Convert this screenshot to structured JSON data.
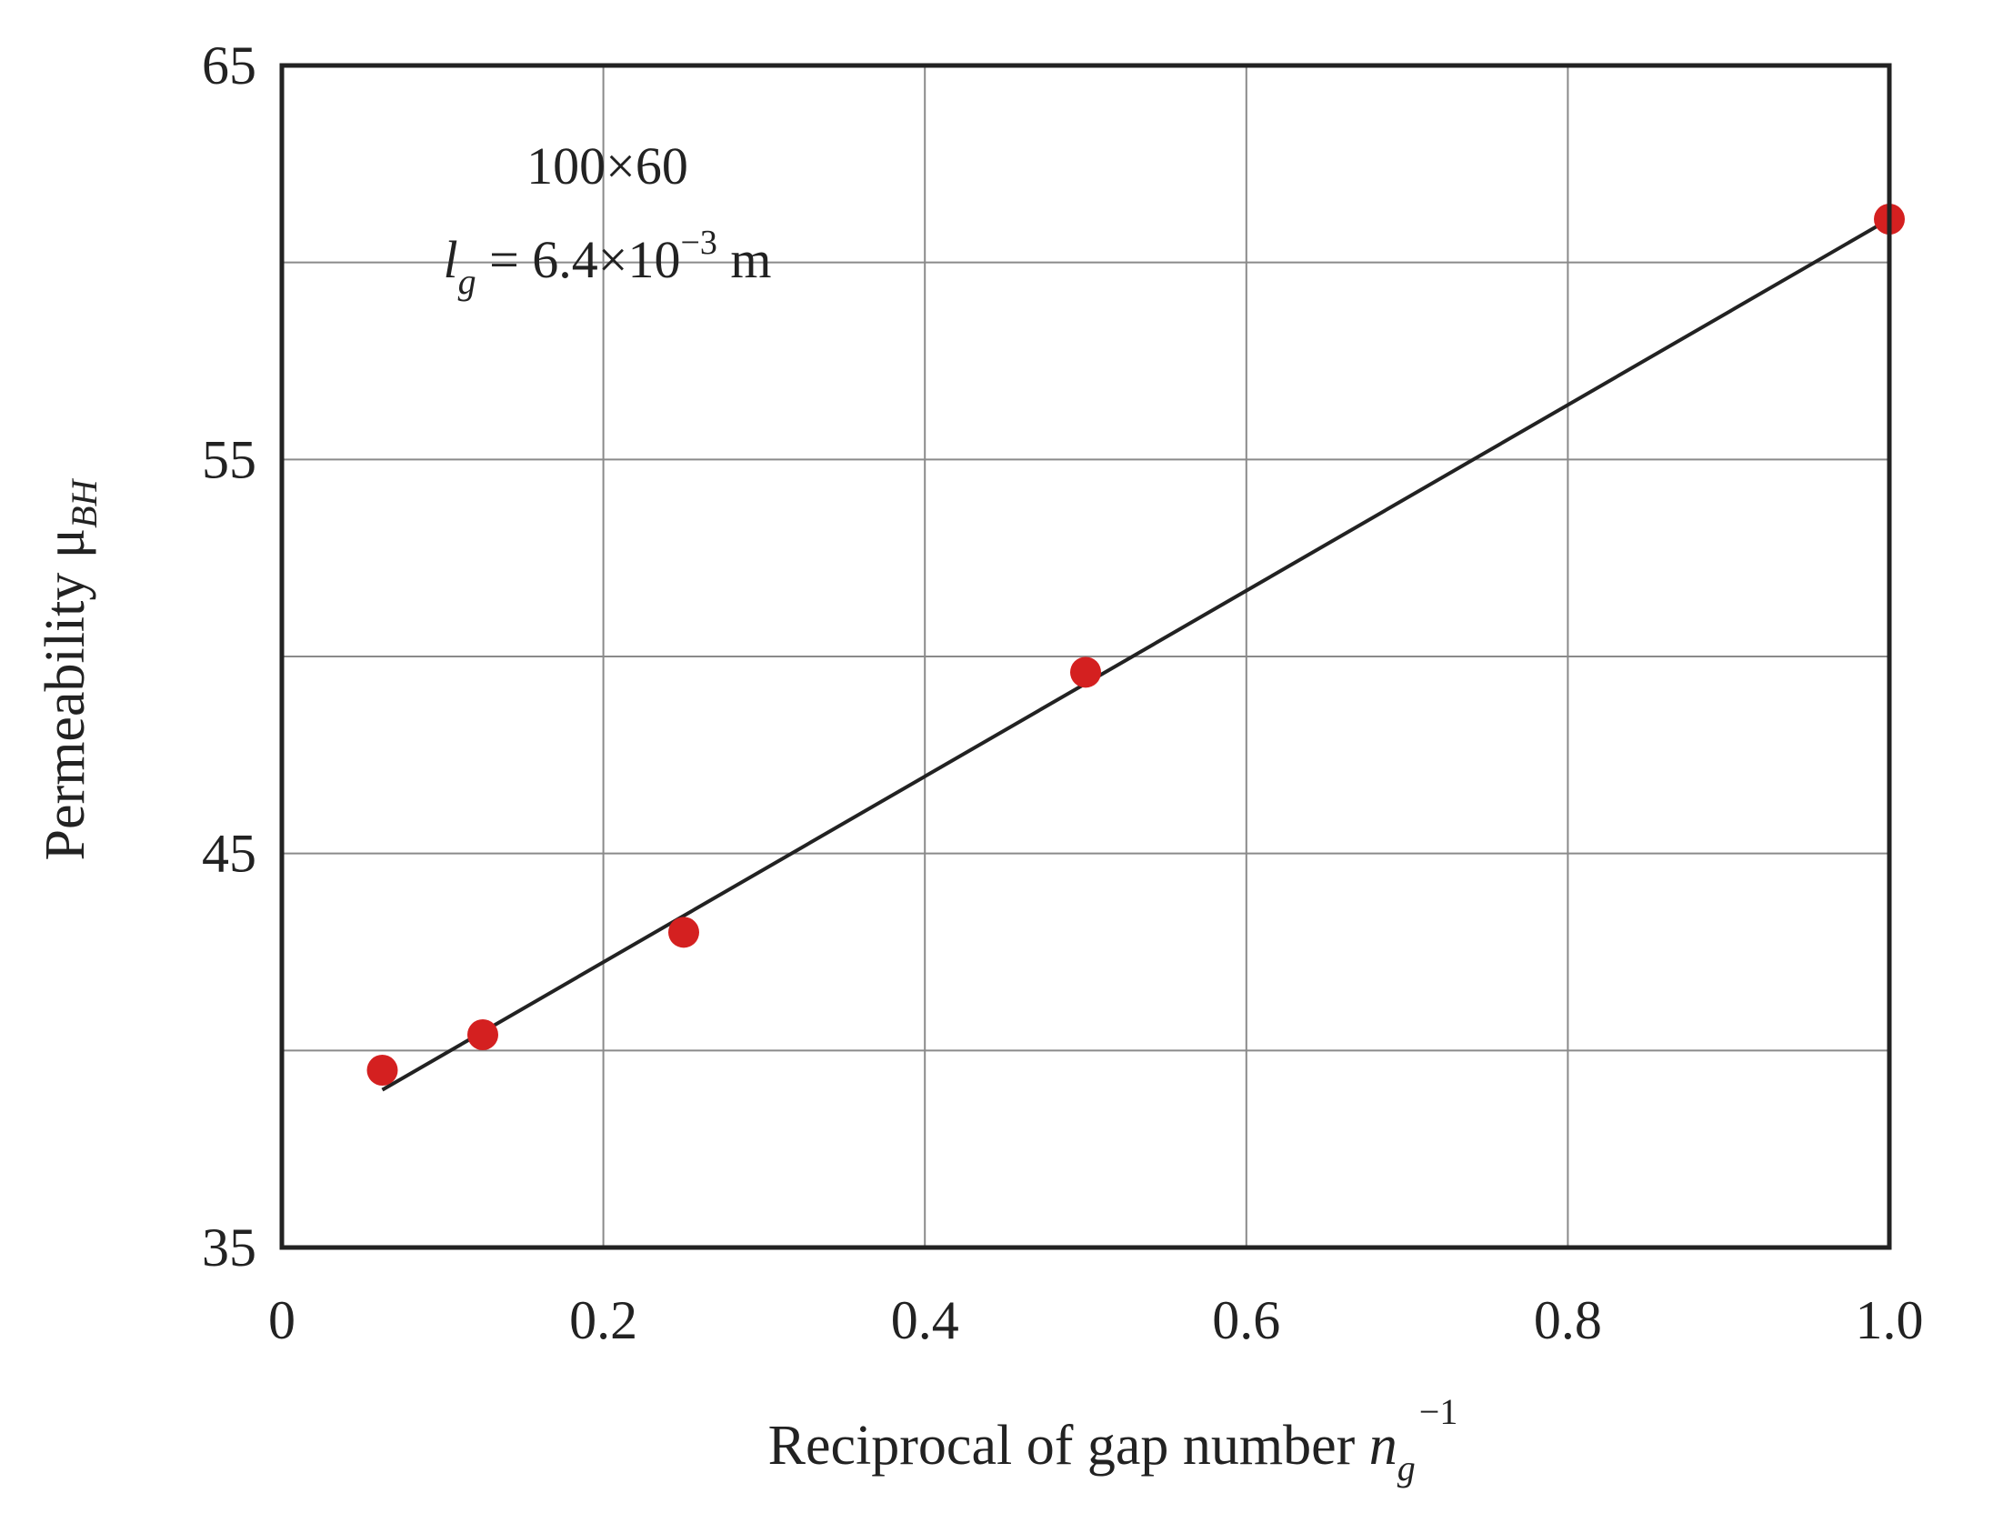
{
  "chart_data": {
    "type": "scatter",
    "xlabel": {
      "main": "Reciprocal of gap number ",
      "var": "n",
      "sub": "g",
      "sup": "−1"
    },
    "ylabel": {
      "main": "Permeability  ",
      "var": "μ",
      "sub": "BH"
    },
    "xlim": [
      0,
      1.0
    ],
    "ylim": [
      35,
      65
    ],
    "x_ticks": [
      {
        "value": 0,
        "label": "0"
      },
      {
        "value": 0.2,
        "label": "0.2"
      },
      {
        "value": 0.4,
        "label": "0.4"
      },
      {
        "value": 0.6,
        "label": "0.6"
      },
      {
        "value": 0.8,
        "label": "0.8"
      },
      {
        "value": 1.0,
        "label": "1.0"
      }
    ],
    "y_ticks": [
      {
        "value": 35,
        "label": "35"
      },
      {
        "value": 45,
        "label": "45"
      },
      {
        "value": 55,
        "label": "55"
      },
      {
        "value": 65,
        "label": "65"
      }
    ],
    "y_grid": [
      40,
      45,
      50,
      55,
      60
    ],
    "x_grid": [
      0.2,
      0.4,
      0.6,
      0.8
    ],
    "grid": true,
    "annotation": {
      "line1": "100×60",
      "line2_var": "l",
      "line2_sub": "g",
      "line2_text": " = 6.4×10",
      "line2_sup": "−3",
      "line2_unit": " m"
    },
    "series": [
      {
        "kind": "points",
        "color": "#d42020",
        "x": [
          0.0625,
          0.125,
          0.25,
          0.5,
          1.0
        ],
        "y": [
          39.5,
          40.4,
          43.0,
          49.6,
          61.1
        ]
      },
      {
        "kind": "fit-line",
        "color": "#222222",
        "x": [
          0.0625,
          1.0
        ],
        "y": [
          39.0,
          61.1
        ]
      }
    ]
  }
}
